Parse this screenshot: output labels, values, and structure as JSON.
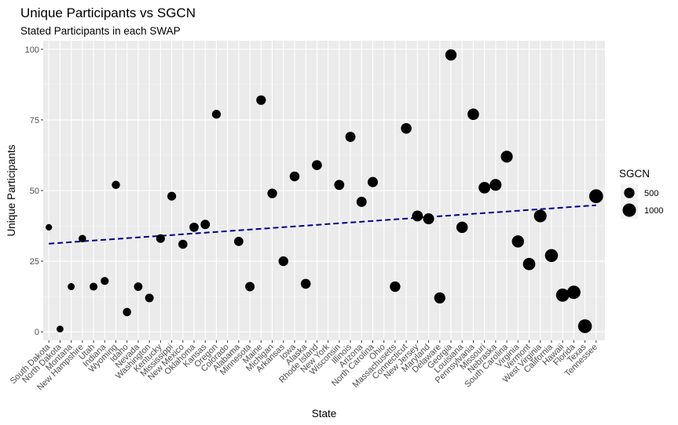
{
  "chart_data": {
    "type": "scatter",
    "title": "Unique Participants vs SGCN",
    "subtitle": "Stated Participants in each SWAP",
    "xlabel": "State",
    "ylabel": "Unique Participants",
    "ylim": [
      -3,
      103
    ],
    "yticks": [
      0,
      25,
      50,
      75,
      100
    ],
    "grid": true,
    "legend": {
      "title": "SGCN",
      "placement": "right",
      "entries": [
        {
          "label": "500",
          "value": 500
        },
        {
          "label": "1000",
          "value": 1000
        }
      ]
    },
    "trend": {
      "style": "dashed",
      "color": "#00008b",
      "start": 31.2,
      "end": 44.8
    },
    "point_color": "#000000",
    "points": [
      {
        "state": "South Dakota",
        "y": 37,
        "sgcn": 90
      },
      {
        "state": "North Dakota",
        "y": 1,
        "sgcn": 115
      },
      {
        "state": "Montana",
        "y": 16,
        "sgcn": 130
      },
      {
        "state": "New Hampshire",
        "y": 33,
        "sgcn": 170
      },
      {
        "state": "Utah",
        "y": 16,
        "sgcn": 200
      },
      {
        "state": "Indiana",
        "y": 18,
        "sgcn": 210
      },
      {
        "state": "Wyoming",
        "y": 52,
        "sgcn": 230
      },
      {
        "state": "Idaho",
        "y": 7,
        "sgcn": 240
      },
      {
        "state": "Nevada",
        "y": 16,
        "sgcn": 260
      },
      {
        "state": "Washington",
        "y": 12,
        "sgcn": 270
      },
      {
        "state": "Kentucky",
        "y": 33,
        "sgcn": 280
      },
      {
        "state": "Mississippi",
        "y": 48,
        "sgcn": 290
      },
      {
        "state": "New Mexico",
        "y": 31,
        "sgcn": 320
      },
      {
        "state": "Oklahoma",
        "y": 37,
        "sgcn": 340
      },
      {
        "state": "Kansas",
        "y": 38,
        "sgcn": 350
      },
      {
        "state": "Oregon",
        "y": 77,
        "sgcn": 290
      },
      {
        "state": "Colorado",
        "y": null,
        "sgcn": null
      },
      {
        "state": "Alabama",
        "y": 32,
        "sgcn": 340
      },
      {
        "state": "Minnesota",
        "y": 16,
        "sgcn": 360
      },
      {
        "state": "Maine",
        "y": 82,
        "sgcn": 380
      },
      {
        "state": "Michigan",
        "y": 49,
        "sgcn": 390
      },
      {
        "state": "Arkansas",
        "y": 25,
        "sgcn": 400
      },
      {
        "state": "Iowa",
        "y": 55,
        "sgcn": 410
      },
      {
        "state": "Alaska",
        "y": 17,
        "sgcn": 420
      },
      {
        "state": "Rhode Island",
        "y": 59,
        "sgcn": 430
      },
      {
        "state": "New York",
        "y": null,
        "sgcn": null
      },
      {
        "state": "Wisconsin",
        "y": 52,
        "sgcn": 440
      },
      {
        "state": "Illinois",
        "y": 69,
        "sgcn": 450
      },
      {
        "state": "Arizona",
        "y": 46,
        "sgcn": 460
      },
      {
        "state": "North Carolina",
        "y": 53,
        "sgcn": 470
      },
      {
        "state": "Ohio",
        "y": null,
        "sgcn": null
      },
      {
        "state": "Massachusetts",
        "y": 16,
        "sgcn": 500
      },
      {
        "state": "Connecticut",
        "y": 72,
        "sgcn": 520
      },
      {
        "state": "New Jersey",
        "y": 41,
        "sgcn": 560
      },
      {
        "state": "Maryland",
        "y": 40,
        "sgcn": 580
      },
      {
        "state": "Delaware",
        "y": 12,
        "sgcn": 600
      },
      {
        "state": "Georgia",
        "y": 98,
        "sgcn": 620
      },
      {
        "state": "Louisiana",
        "y": 37,
        "sgcn": 640
      },
      {
        "state": "Pennsylvania",
        "y": 77,
        "sgcn": 660
      },
      {
        "state": "Missouri",
        "y": 51,
        "sgcn": 680
      },
      {
        "state": "Nebraska",
        "y": 52,
        "sgcn": 700
      },
      {
        "state": "South Carolina",
        "y": 62,
        "sgcn": 720
      },
      {
        "state": "Virginia",
        "y": 32,
        "sgcn": 760
      },
      {
        "state": "Vermont",
        "y": 24,
        "sgcn": 800
      },
      {
        "state": "West Virginia",
        "y": 41,
        "sgcn": 860
      },
      {
        "state": "California",
        "y": 27,
        "sgcn": 920
      },
      {
        "state": "Hawaii",
        "y": 13,
        "sgcn": 960
      },
      {
        "state": "Florida",
        "y": 14,
        "sgcn": 1000
      },
      {
        "state": "Texas",
        "y": 2,
        "sgcn": 1080
      },
      {
        "state": "Tennessee",
        "y": 48,
        "sgcn": 1100
      }
    ]
  }
}
